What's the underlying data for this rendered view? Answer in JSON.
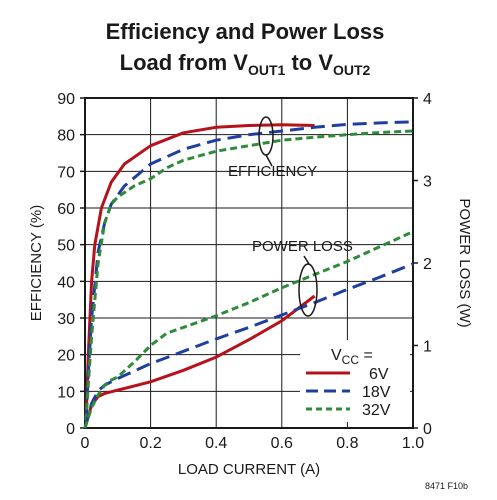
{
  "chart_data": {
    "type": "line",
    "title_line1": "Efficiency and Power Loss",
    "title_line2_prefix": "Load from V",
    "title_line2_sub1": "OUT1",
    "title_line2_mid": " to V",
    "title_line2_sub2": "OUT2",
    "xlabel": "LOAD CURRENT (A)",
    "ylabel_left": "EFFICIENCY (%)",
    "ylabel_right": "POWER LOSS (W)",
    "xlim": [
      0,
      1.0
    ],
    "ylim_left": [
      0,
      90
    ],
    "ylim_right": [
      0,
      4
    ],
    "x_ticks": [
      "0",
      "0.2",
      "0.4",
      "0.6",
      "0.8",
      "1.0"
    ],
    "y_left_ticks": [
      "0",
      "10",
      "20",
      "30",
      "40",
      "50",
      "60",
      "70",
      "80",
      "90"
    ],
    "y_right_ticks": [
      "0",
      "1",
      "2",
      "3",
      "4"
    ],
    "grid": true,
    "annotations": {
      "efficiency": "EFFICIENCY",
      "power_loss": "POWER LOSS"
    },
    "legend": {
      "placement": "bottom-right",
      "header_prefix": "V",
      "header_sub": "CC",
      "header_suffix": " =",
      "entries": [
        "6V",
        "18V",
        "32V"
      ]
    },
    "figure_id": "8471 F10b",
    "colors": {
      "6V": "#b5121b",
      "18V": "#1f3f9e",
      "32V": "#2e8b3a",
      "grid": "#1a1a1a",
      "axis": "#1a1a1a"
    },
    "series": [
      {
        "name": "6V",
        "axis": "efficiency",
        "x": [
          0.003,
          0.01,
          0.02,
          0.03,
          0.05,
          0.08,
          0.12,
          0.2,
          0.3,
          0.4,
          0.5,
          0.6,
          0.7
        ],
        "y": [
          2,
          20,
          40,
          50,
          60,
          67,
          72,
          77,
          80.5,
          82,
          82.5,
          82.7,
          82.5
        ]
      },
      {
        "name": "18V",
        "axis": "efficiency",
        "x": [
          0.003,
          0.01,
          0.02,
          0.04,
          0.06,
          0.08,
          0.12,
          0.2,
          0.3,
          0.4,
          0.5,
          0.6,
          0.7,
          0.8,
          0.9,
          1.0
        ],
        "y": [
          2,
          15,
          30,
          48,
          56,
          61,
          66,
          72,
          76,
          78.5,
          80,
          81,
          82,
          82.8,
          83.2,
          83.5
        ]
      },
      {
        "name": "32V",
        "axis": "efficiency",
        "x": [
          0.003,
          0.01,
          0.02,
          0.04,
          0.06,
          0.08,
          0.1,
          0.15,
          0.2,
          0.25,
          0.3,
          0.4,
          0.5,
          0.6,
          0.7,
          0.8,
          0.9,
          1.0
        ],
        "y": [
          2,
          12,
          25,
          45,
          56,
          61,
          63,
          66,
          68,
          71,
          73,
          75.5,
          77,
          78.5,
          79.3,
          80,
          80.6,
          81
        ]
      },
      {
        "name": "6V",
        "axis": "power_loss",
        "x": [
          0,
          0.02,
          0.04,
          0.06,
          0.1,
          0.2,
          0.3,
          0.4,
          0.5,
          0.6,
          0.7
        ],
        "y": [
          0,
          0.28,
          0.38,
          0.42,
          0.46,
          0.56,
          0.7,
          0.86,
          1.07,
          1.3,
          1.6
        ]
      },
      {
        "name": "18V",
        "axis": "power_loss",
        "x": [
          0,
          0.02,
          0.04,
          0.06,
          0.1,
          0.2,
          0.3,
          0.4,
          0.5,
          0.6,
          0.7,
          0.8,
          0.9,
          1.0
        ],
        "y": [
          0,
          0.3,
          0.45,
          0.52,
          0.6,
          0.78,
          0.93,
          1.08,
          1.22,
          1.37,
          1.52,
          1.68,
          1.83,
          1.99
        ]
      },
      {
        "name": "32V",
        "axis": "power_loss",
        "x": [
          0,
          0.02,
          0.04,
          0.06,
          0.08,
          0.1,
          0.15,
          0.2,
          0.25,
          0.3,
          0.4,
          0.5,
          0.6,
          0.7,
          0.8,
          0.9,
          1.0
        ],
        "y": [
          0,
          0.25,
          0.4,
          0.52,
          0.58,
          0.62,
          0.8,
          1.0,
          1.15,
          1.22,
          1.36,
          1.52,
          1.7,
          1.86,
          2.02,
          2.2,
          2.38
        ]
      }
    ]
  }
}
